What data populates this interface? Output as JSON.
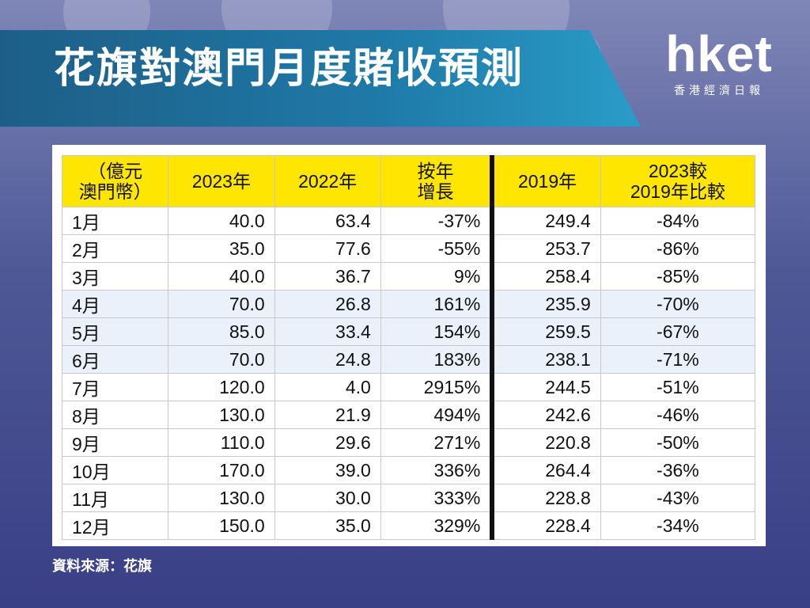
{
  "title": "花旗對澳門月度賭收預測",
  "logo": {
    "main": "hket",
    "sub": "香港經濟日報"
  },
  "source": "資料來源：花旗",
  "chart_data": {
    "type": "table",
    "headers": [
      "（億元\n澳門幣）",
      "2023年",
      "2022年",
      "按年\n增長",
      "2019年",
      "2023較\n2019年比較"
    ],
    "rows": [
      [
        "1月",
        "40.0",
        "63.4",
        "-37%",
        "249.4",
        "-84%"
      ],
      [
        "2月",
        "35.0",
        "77.6",
        "-55%",
        "253.7",
        "-86%"
      ],
      [
        "3月",
        "40.0",
        "36.7",
        "9%",
        "258.4",
        "-85%"
      ],
      [
        "4月",
        "70.0",
        "26.8",
        "161%",
        "235.9",
        "-70%"
      ],
      [
        "5月",
        "85.0",
        "33.4",
        "154%",
        "259.5",
        "-67%"
      ],
      [
        "6月",
        "70.0",
        "24.8",
        "183%",
        "238.1",
        "-71%"
      ],
      [
        "7月",
        "120.0",
        "4.0",
        "2915%",
        "244.5",
        "-51%"
      ],
      [
        "8月",
        "130.0",
        "21.9",
        "494%",
        "242.6",
        "-46%"
      ],
      [
        "9月",
        "110.0",
        "29.6",
        "271%",
        "220.8",
        "-50%"
      ],
      [
        "10月",
        "170.0",
        "39.0",
        "336%",
        "264.4",
        "-36%"
      ],
      [
        "11月",
        "130.0",
        "30.0",
        "333%",
        "228.8",
        "-43%"
      ],
      [
        "12月",
        "150.0",
        "35.0",
        "329%",
        "228.4",
        "-34%"
      ]
    ]
  }
}
